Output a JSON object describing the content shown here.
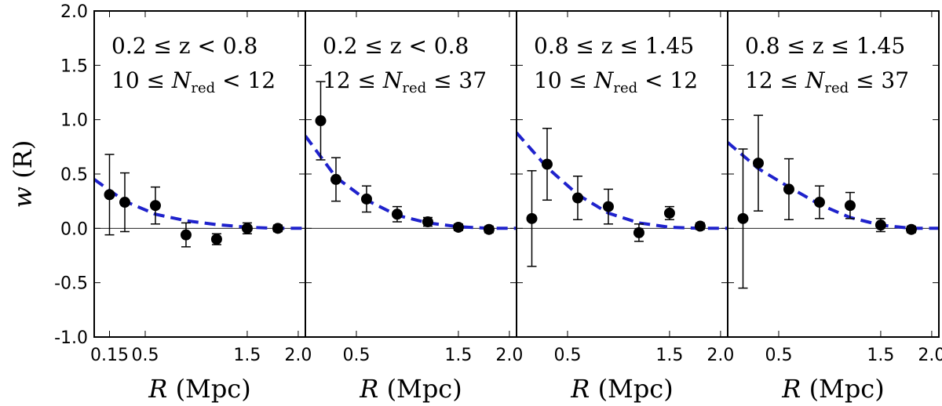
{
  "chart_data": {
    "type": "scatter",
    "ylabel": "w (R)",
    "xlabel": "R (Mpc)",
    "ylim": [
      -1.0,
      2.0
    ],
    "yticks": [
      -1.0,
      -0.5,
      0.0,
      0.5,
      1.0,
      1.5,
      2.0
    ],
    "ytick_labels": [
      "-1.0",
      "-0.5",
      "0.0",
      "0.5",
      "1.0",
      "1.5",
      "2.0"
    ],
    "xlim": [
      0,
      2.07
    ],
    "panels": [
      {
        "name": "panel-1",
        "annotation_line1": "0.2 ≤ z < 0.8",
        "annotation_line2": "10 ≤ N_red < 12",
        "xtick_labels": [
          "0.15",
          "0.5",
          "1.5",
          "2.0"
        ],
        "xtick_positions": [
          0.15,
          0.5,
          1.5,
          2.0
        ],
        "x": [
          0.15,
          0.3,
          0.6,
          0.9,
          1.2,
          1.5,
          1.8
        ],
        "y": [
          0.31,
          0.24,
          0.21,
          -0.06,
          -0.1,
          0.0,
          0.0
        ],
        "yerr": [
          0.37,
          0.27,
          0.17,
          0.11,
          0.05,
          0.05,
          0.03
        ],
        "model": [
          0.35,
          0.25,
          0.13,
          0.07,
          0.035,
          0.01,
          0.0
        ]
      },
      {
        "name": "panel-2",
        "annotation_line1": "0.2 ≤ z < 0.8",
        "annotation_line2": "12 ≤ N_red ≤ 37",
        "xtick_labels": [
          "0.5",
          "1.5",
          "2.0"
        ],
        "xtick_positions": [
          0.5,
          1.5,
          2.0
        ],
        "x": [
          0.15,
          0.3,
          0.6,
          0.9,
          1.2,
          1.5,
          1.8
        ],
        "y": [
          0.99,
          0.45,
          0.27,
          0.13,
          0.06,
          0.01,
          -0.01
        ],
        "yerr": [
          0.36,
          0.2,
          0.12,
          0.07,
          0.04,
          0.03,
          0.03
        ],
        "model": [
          0.66,
          0.47,
          0.26,
          0.12,
          0.05,
          0.015,
          0.0
        ]
      },
      {
        "name": "panel-3",
        "annotation_line1": "0.8 ≤ z ≤ 1.45",
        "annotation_line2": "10 ≤ N_red < 12",
        "xtick_labels": [
          "0.5",
          "1.5",
          "2.0"
        ],
        "xtick_positions": [
          0.5,
          1.5,
          2.0
        ],
        "x": [
          0.15,
          0.3,
          0.6,
          0.9,
          1.2,
          1.5,
          1.8
        ],
        "y": [
          0.09,
          0.59,
          0.28,
          0.2,
          -0.04,
          0.14,
          0.02
        ],
        "yerr": [
          0.44,
          0.33,
          0.2,
          0.16,
          0.08,
          0.06,
          0.03
        ],
        "model": [
          0.72,
          0.56,
          0.31,
          0.14,
          0.05,
          0.01,
          0.0
        ]
      },
      {
        "name": "panel-4",
        "annotation_line1": "0.8 ≤ z ≤ 1.45",
        "annotation_line2": "12 ≤ N_red ≤ 37",
        "xtick_labels": [
          "0.5",
          "1.5",
          "2.0"
        ],
        "xtick_positions": [
          0.5,
          1.5,
          2.0
        ],
        "x": [
          0.15,
          0.3,
          0.6,
          0.9,
          1.2,
          1.5,
          1.8
        ],
        "y": [
          0.09,
          0.6,
          0.36,
          0.24,
          0.21,
          0.03,
          -0.01
        ],
        "yerr": [
          0.64,
          0.44,
          0.28,
          0.15,
          0.12,
          0.06,
          0.03
        ],
        "model": [
          0.67,
          0.55,
          0.38,
          0.22,
          0.1,
          0.03,
          0.0
        ]
      }
    ],
    "colors": {
      "model_line": "#1f22cc",
      "points": "#000000",
      "zero_line": "#000000"
    }
  }
}
